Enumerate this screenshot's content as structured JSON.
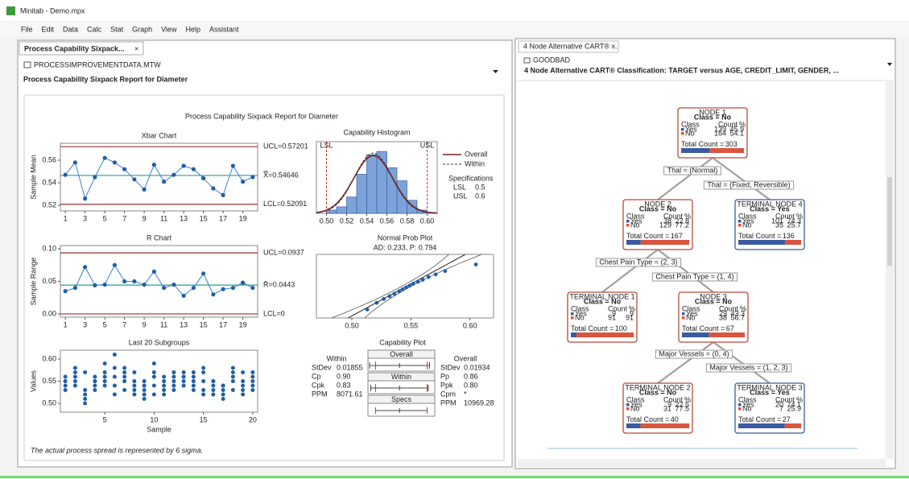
{
  "window": {
    "title": "Minitab - Demo.mpx"
  },
  "menu": [
    "File",
    "Edit",
    "Data",
    "Calc",
    "Stat",
    "Graph",
    "View",
    "Help",
    "Assistant"
  ],
  "left_pane": {
    "tab": "Process Capability Sixpack...",
    "worksheet": "PROCESSIMPROVEMENTDATA.MTW",
    "heading": "Process Capability Sixpack Report for Diameter"
  },
  "report": {
    "title": "Process Capability Sixpack Report for Diameter",
    "footer": "The actual process spread is represented by 6 sigma.",
    "xbar": {
      "title": "Xbar Chart",
      "ylabel": "Sample Mean",
      "ylim": [
        0.515,
        0.575
      ],
      "yticks": [
        0.52,
        0.54,
        0.56
      ],
      "xticks": [
        1,
        3,
        5,
        7,
        9,
        11,
        13,
        15,
        17,
        19
      ],
      "values": [
        0.547,
        0.558,
        0.526,
        0.545,
        0.562,
        0.558,
        0.552,
        0.543,
        0.534,
        0.556,
        0.541,
        0.547,
        0.555,
        0.552,
        0.544,
        0.535,
        0.529,
        0.555,
        0.541,
        0.545
      ],
      "ucl": 0.57201,
      "ucl_label": "UCL=0.57201",
      "center": 0.54646,
      "center_label": "X̿=0.54646",
      "lcl": 0.52091,
      "lcl_label": "LCL=0.52091"
    },
    "rchart": {
      "title": "R Chart",
      "ylabel": "Sample Range",
      "ylim": [
        -0.005,
        0.105
      ],
      "yticks": [
        {
          "value": 0,
          "label": "0.00"
        },
        0.05,
        {
          "value": 0.1,
          "label": "0.10"
        }
      ],
      "xticks": [
        1,
        3,
        5,
        7,
        9,
        11,
        13,
        15,
        17,
        19
      ],
      "values": [
        0.035,
        0.04,
        0.072,
        0.044,
        0.045,
        0.075,
        0.05,
        0.05,
        0.045,
        0.065,
        0.04,
        0.045,
        0.028,
        0.04,
        0.062,
        0.03,
        0.038,
        0.04,
        0.048,
        0.04
      ],
      "ucl": 0.0937,
      "ucl_label": "UCL=0.0937",
      "center": 0.0443,
      "center_label": "R̄=0.0443",
      "lcl": 0,
      "lcl_label": "LCL=0"
    },
    "subgroups": {
      "title": "Last 20 Subgroups",
      "ylabel": "Values",
      "xlabel": "Sample",
      "ylim": [
        0.48,
        0.62
      ],
      "yticks": [
        {
          "value": 0.5,
          "label": "0.50"
        },
        0.55,
        {
          "value": 0.6,
          "label": "0.60"
        }
      ],
      "xticks": [
        5,
        10,
        15,
        20
      ],
      "values": [
        [
          0.53,
          0.54,
          0.55,
          0.56,
          0.55
        ],
        [
          0.54,
          0.55,
          0.56,
          0.57,
          0.58
        ],
        [
          0.5,
          0.51,
          0.52,
          0.53,
          0.57
        ],
        [
          0.53,
          0.54,
          0.55,
          0.55,
          0.56
        ],
        [
          0.54,
          0.55,
          0.56,
          0.57,
          0.59
        ],
        [
          0.52,
          0.54,
          0.56,
          0.58,
          0.61
        ],
        [
          0.53,
          0.55,
          0.56,
          0.57,
          0.58
        ],
        [
          0.52,
          0.53,
          0.54,
          0.55,
          0.57
        ],
        [
          0.51,
          0.52,
          0.53,
          0.54,
          0.55
        ],
        [
          0.52,
          0.54,
          0.56,
          0.57,
          0.59
        ],
        [
          0.52,
          0.53,
          0.54,
          0.55,
          0.56
        ],
        [
          0.53,
          0.54,
          0.55,
          0.56,
          0.57
        ],
        [
          0.54,
          0.55,
          0.56,
          0.56,
          0.57
        ],
        [
          0.53,
          0.54,
          0.55,
          0.56,
          0.57
        ],
        [
          0.52,
          0.53,
          0.55,
          0.57,
          0.58
        ],
        [
          0.52,
          0.53,
          0.54,
          0.55,
          0.55
        ],
        [
          0.51,
          0.52,
          0.53,
          0.54,
          0.54
        ],
        [
          0.53,
          0.55,
          0.56,
          0.57,
          0.58
        ],
        [
          0.52,
          0.53,
          0.54,
          0.55,
          0.57
        ],
        [
          0.53,
          0.54,
          0.55,
          0.56,
          0.57
        ]
      ]
    },
    "histogram": {
      "title": "Capability Histogram",
      "xlim": [
        0.49,
        0.61
      ],
      "ylim": [
        0,
        22
      ],
      "xticks": [
        {
          "value": 0.5,
          "label": "0.50"
        },
        0.52,
        0.54,
        0.56,
        0.58,
        {
          "value": 0.6,
          "label": "0.60"
        }
      ],
      "bins": [
        0.5,
        0.51,
        0.52,
        0.53,
        0.54,
        0.55,
        0.56,
        0.57,
        0.58,
        0.59,
        0.6
      ],
      "counts": [
        1,
        2,
        5,
        12,
        18,
        19,
        14,
        10,
        4,
        1
      ],
      "legend": [
        "Overall",
        "Within"
      ]
    },
    "specs": {
      "label": "Specifications",
      "lsl_label": "LSL",
      "lsl": 0.5,
      "usl_label": "USL",
      "usl": 0.6
    },
    "probplot": {
      "title": "Normal Prob Plot",
      "subtitle": "AD: 0.233, P: 0.794",
      "xlim": [
        0.47,
        0.62
      ],
      "ylim": [
        0.5,
        99.5
      ],
      "xticks": [
        {
          "value": 0.5,
          "label": "0.50"
        },
        0.55,
        {
          "value": 0.6,
          "label": "0.60"
        }
      ],
      "x": [
        0.513,
        0.521,
        0.527,
        0.532,
        0.536,
        0.54,
        0.543,
        0.546,
        0.549,
        0.552,
        0.556,
        0.56,
        0.565,
        0.571,
        0.579,
        0.605
      ],
      "y": [
        3,
        9,
        15,
        21,
        27,
        34,
        40,
        46,
        52,
        58,
        64,
        70,
        77,
        83,
        89,
        96
      ]
    },
    "capability": {
      "title": "Capability Plot",
      "boxes": [
        "Overall",
        "Within",
        "Specs"
      ],
      "within": {
        "heading": "Within",
        "rows": [
          [
            "StDev",
            0.01855
          ],
          [
            "Cp",
            "0.90"
          ],
          [
            "Cpk",
            "0.83"
          ],
          [
            "PPM",
            "8071.61"
          ]
        ]
      },
      "overall": {
        "heading": "Overall",
        "rows": [
          [
            "StDev",
            0.01934
          ],
          [
            "Pp",
            "0.86"
          ],
          [
            "Ppk",
            "0.80"
          ],
          [
            "Cpm",
            "*"
          ],
          [
            "PPM",
            "10969.28"
          ]
        ]
      }
    }
  },
  "right_pane": {
    "tab": "4 Node Alternative CART® ...",
    "worksheet": "GOODBAD",
    "heading": "4 Node Alternative CART® Classification: TARGET versus AGE, CREDIT_LIMIT, GENDER, ...",
    "col_headers": [
      "Class",
      "Count",
      "%"
    ],
    "total_label": "Total Count =",
    "nodes": [
      {
        "title": "NODE 1",
        "class": "Class = No",
        "rows": [
          [
            "Yes",
            139,
            45.9
          ],
          [
            "No",
            164,
            54.1
          ]
        ],
        "total": 303
      },
      {
        "title": "NODE 2",
        "class": "Class = No",
        "rows": [
          [
            "Yes",
            38,
            22.8
          ],
          [
            "No",
            129,
            77.2
          ]
        ],
        "total": 167
      },
      {
        "title": "TERMINAL NODE 4",
        "class": "Class = Yes",
        "rows": [
          [
            "Yes",
            101,
            74.3
          ],
          [
            "No",
            35,
            25.7
          ]
        ],
        "total": 136
      },
      {
        "title": "TERMINAL NODE 1",
        "class": "Class = No",
        "rows": [
          [
            "Yes",
            9,
            9
          ],
          [
            "No",
            91,
            91
          ]
        ],
        "total": 100
      },
      {
        "title": "NODE 3",
        "class": "Class = No",
        "rows": [
          [
            "Yes",
            29,
            43.3
          ],
          [
            "No",
            38,
            56.7
          ]
        ],
        "total": 67
      },
      {
        "title": "TERMINAL NODE 2",
        "class": "Class = No",
        "rows": [
          [
            "Yes",
            9,
            22.5
          ],
          [
            "No",
            31,
            77.5
          ]
        ],
        "total": 40
      },
      {
        "title": "TERMINAL NODE 3",
        "class": "Class = Yes",
        "rows": [
          [
            "Yes",
            20,
            74.1
          ],
          [
            "No",
            7,
            25.9
          ]
        ],
        "total": 27
      }
    ],
    "edges": [
      "Thal = (Normal)",
      "Thal = (Fixed, Reversible)",
      "Chest Pain Type = (2, 3)",
      "Chest Pain Type = (1, 4)",
      "Major Vessels = (0, 4)",
      "Major Vessels = (1, 2, 3)"
    ]
  }
}
